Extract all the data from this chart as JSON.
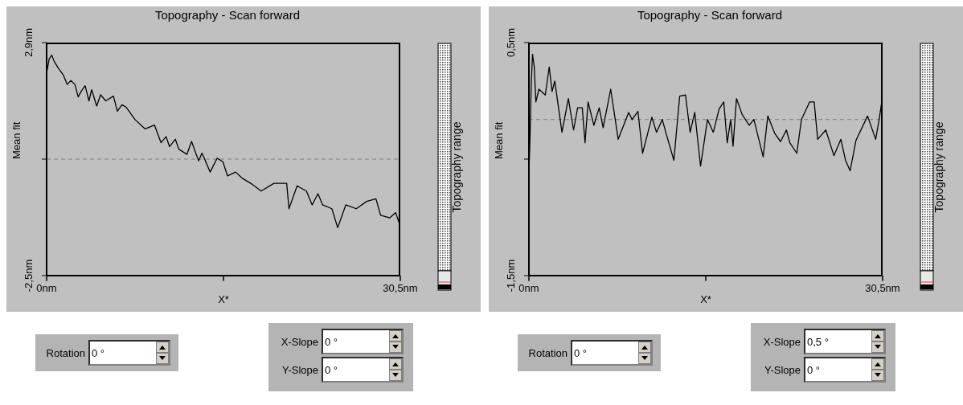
{
  "chart_data": [
    {
      "type": "line",
      "title": "Topography - Scan forward",
      "xlabel": "X*",
      "ylabel": "Mean fit",
      "color": "#000000",
      "x": [
        0,
        0.22,
        0.44,
        0.66,
        1.0,
        1.44,
        1.77,
        2.1,
        2.44,
        2.72,
        3.0,
        3.32,
        3.65,
        3.88,
        4.32,
        4.65,
        5.1,
        5.76,
        6.1,
        6.5,
        6.87,
        7.64,
        8.5,
        9.3,
        9.86,
        10.3,
        10.6,
        11.1,
        11.4,
        12.1,
        12.5,
        13.1,
        13.4,
        14.1,
        14.7,
        15.2,
        15.6,
        16.3,
        16.9,
        17.6,
        18.5,
        19.6,
        20.7,
        20.9,
        21.6,
        22.4,
        22.9,
        23.4,
        23.8,
        24.6,
        25.1,
        25.8,
        26.7,
        27.6,
        28.4,
        28.8,
        29.6,
        30.1,
        30.5
      ],
      "values": [
        2.19,
        2.52,
        2.61,
        2.46,
        2.31,
        2.15,
        1.93,
        2.02,
        1.93,
        1.64,
        1.78,
        1.9,
        1.55,
        1.81,
        1.43,
        1.69,
        1.55,
        1.66,
        1.31,
        1.46,
        1.4,
        1.11,
        0.9,
        0.99,
        0.58,
        0.72,
        0.49,
        0.66,
        0.43,
        0.31,
        0.61,
        0.16,
        0.34,
        -0.1,
        0.22,
        0.14,
        -0.19,
        -0.1,
        -0.25,
        -0.36,
        -0.54,
        -0.36,
        -0.36,
        -0.95,
        -0.42,
        -0.54,
        -0.86,
        -0.6,
        -0.86,
        -0.95,
        -1.39,
        -0.86,
        -0.95,
        -0.78,
        -0.72,
        -1.1,
        -1.16,
        -1.04,
        -1.36
      ],
      "xlim": [
        0,
        30.5
      ],
      "xticks": [
        {
          "value": 0,
          "label": "0nm"
        },
        {
          "value": 15.25,
          "label": null
        },
        {
          "value": 30.5,
          "label": "30,5nm"
        }
      ],
      "ylim": [
        -2.5,
        2.9
      ],
      "yticks": [
        {
          "value": -2.5,
          "label": "-2,5nm"
        },
        {
          "value": 0.2,
          "label": null
        },
        {
          "value": 2.9,
          "label": "2,9nm"
        }
      ],
      "ref_lines": [
        {
          "axis": "y",
          "value": 0.2,
          "color": "#808080",
          "line_style": "dashed"
        }
      ],
      "annotations": [
        "Topography range",
        "Rotation",
        "0 °",
        "X-Slope",
        "0 °",
        "Y-Slope",
        "0 °"
      ]
    },
    {
      "type": "line",
      "title": "Topography - Scan forward",
      "xlabel": "X*",
      "ylabel": "Mean fit",
      "color": "#000000",
      "x": [
        0,
        0.09,
        0.2,
        0.31,
        0.46,
        0.6,
        0.86,
        1.41,
        1.75,
        2.0,
        2.23,
        2.85,
        3.4,
        3.85,
        4.2,
        4.6,
        4.84,
        5.1,
        5.6,
        6.06,
        6.4,
        7.05,
        7.7,
        8.6,
        8.9,
        9.4,
        9.8,
        10.6,
        11.0,
        11.5,
        11.8,
        12.5,
        13.0,
        13.5,
        13.9,
        14.3,
        14.8,
        15.4,
        15.9,
        16.4,
        16.8,
        17.1,
        17.4,
        17.6,
        17.9,
        18.4,
        19.0,
        19.4,
        20.2,
        20.6,
        21.2,
        21.7,
        22.2,
        22.5,
        23.1,
        23.5,
        24.2,
        24.6,
        24.9,
        25.6,
        26.3,
        26.9,
        27.3,
        27.7,
        28.2,
        29.2,
        29.9,
        30.2,
        30.5
      ],
      "values": [
        -0.6,
        -0.34,
        0.15,
        0.4,
        0.29,
        -0.01,
        0.1,
        0.05,
        0.29,
        0.08,
        0.17,
        -0.27,
        0.02,
        -0.25,
        -0.06,
        -0.06,
        -0.36,
        -0.01,
        -0.21,
        -0.06,
        -0.23,
        0.1,
        -0.33,
        -0.1,
        -0.16,
        -0.09,
        -0.45,
        -0.14,
        -0.27,
        -0.16,
        -0.27,
        -0.51,
        0.04,
        0.05,
        -0.27,
        -0.1,
        -0.56,
        -0.16,
        -0.27,
        -0.07,
        -0.01,
        -0.36,
        -0.16,
        -0.39,
        0.02,
        -0.12,
        -0.21,
        -0.16,
        -0.48,
        -0.13,
        -0.28,
        -0.35,
        -0.25,
        -0.36,
        -0.45,
        -0.16,
        -0.01,
        -0.01,
        -0.33,
        -0.25,
        -0.47,
        -0.33,
        -0.51,
        -0.6,
        -0.34,
        -0.13,
        -0.33,
        -0.16,
        0.04
      ],
      "xlim": [
        0,
        30.5
      ],
      "xticks": [
        {
          "value": 0,
          "label": "0nm"
        },
        {
          "value": 15.25,
          "label": null
        },
        {
          "value": 30.5,
          "label": "30,5nm"
        }
      ],
      "ylim": [
        -1.5,
        0.5
      ],
      "yticks": [
        {
          "value": -1.5,
          "label": "-1,5nm"
        },
        {
          "value": -0.5,
          "label": null
        },
        {
          "value": 0.5,
          "label": "0,5nm"
        }
      ],
      "ref_lines": [
        {
          "axis": "y",
          "value": -0.16,
          "color": "#808080",
          "line_style": "dashed"
        }
      ],
      "annotations": [
        "Topography range",
        "Rotation",
        "0 °",
        "X-Slope",
        "0,5 °",
        "Y-Slope",
        "0 °"
      ]
    }
  ]
}
